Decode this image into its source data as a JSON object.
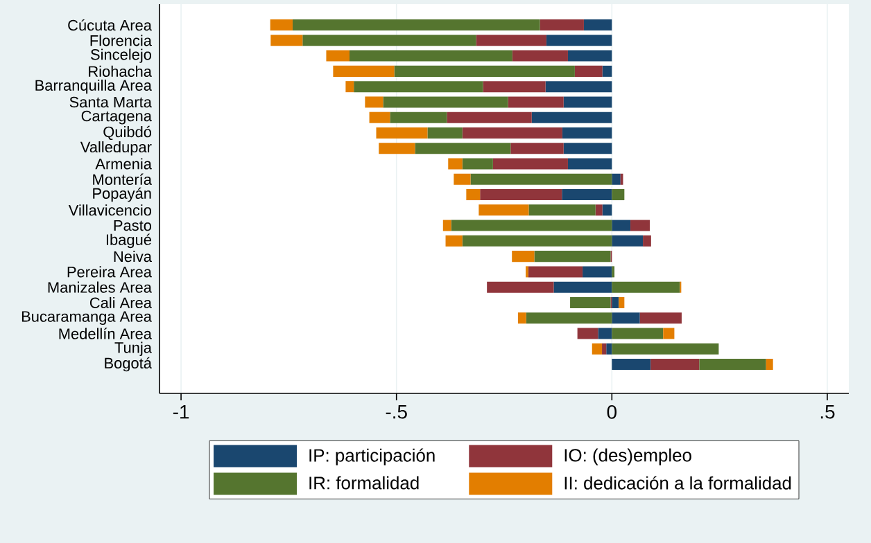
{
  "chart_data": {
    "type": "bar",
    "orientation": "horizontal",
    "stacked": true,
    "categories": [
      "Cúcuta Area",
      "Florencia",
      "Sincelejo",
      "Riohacha",
      "Barranquilla Area",
      "Santa Marta",
      "Cartagena",
      "Quibdó",
      "Valledupar",
      "Armenia",
      "Montería",
      "Popayán",
      "Villavicencio",
      "Pasto",
      "Ibagué",
      "Neiva",
      "Pereira Area",
      "Manizales Area",
      "Cali Area",
      "Bucaramanga Area",
      "Medellín Area",
      "Tunja",
      "Bogotá"
    ],
    "series": [
      {
        "name": "IP: participación",
        "color": "#1a476f",
        "values": [
          -0.065,
          -0.152,
          -0.102,
          -0.022,
          -0.154,
          -0.112,
          -0.186,
          -0.115,
          -0.112,
          -0.102,
          0.02,
          -0.116,
          -0.022,
          0.043,
          0.072,
          null,
          -0.068,
          -0.135,
          0.016,
          0.065,
          -0.032,
          -0.013,
          0.09
        ]
      },
      {
        "name": "IO: (des)empleo",
        "color": "#90353b",
        "values": [
          -0.102,
          -0.163,
          -0.129,
          -0.064,
          -0.145,
          -0.129,
          -0.197,
          -0.232,
          -0.123,
          -0.174,
          0.006,
          -0.19,
          -0.016,
          0.045,
          0.019,
          -0.003,
          -0.126,
          -0.155,
          -0.003,
          0.097,
          -0.048,
          -0.01,
          0.113
        ]
      },
      {
        "name": "IR: formalidad",
        "color": "#55752f",
        "values": [
          -0.574,
          -0.403,
          -0.378,
          -0.419,
          -0.3,
          -0.29,
          -0.132,
          -0.081,
          -0.222,
          -0.071,
          -0.328,
          0.029,
          -0.155,
          -0.373,
          -0.347,
          -0.177,
          0.006,
          0.158,
          -0.094,
          -0.199,
          0.119,
          0.248,
          0.155
        ]
      },
      {
        "name": "II: dedicación a la formalidad",
        "color": "#e37e00",
        "values": [
          -0.052,
          -0.074,
          -0.054,
          -0.142,
          -0.019,
          -0.042,
          -0.048,
          -0.119,
          -0.084,
          -0.033,
          -0.039,
          -0.032,
          -0.116,
          -0.019,
          -0.039,
          -0.052,
          -0.006,
          0.003,
          0.013,
          -0.019,
          0.026,
          -0.023,
          0.016
        ]
      }
    ],
    "xlim": [
      -1.05,
      0.55
    ],
    "xticks": [
      -1,
      {
        "value": -0.5,
        "label": "-.5"
      },
      0,
      {
        "value": 0.5,
        "label": ".5"
      }
    ],
    "grid": "x",
    "legend": "bottom"
  }
}
